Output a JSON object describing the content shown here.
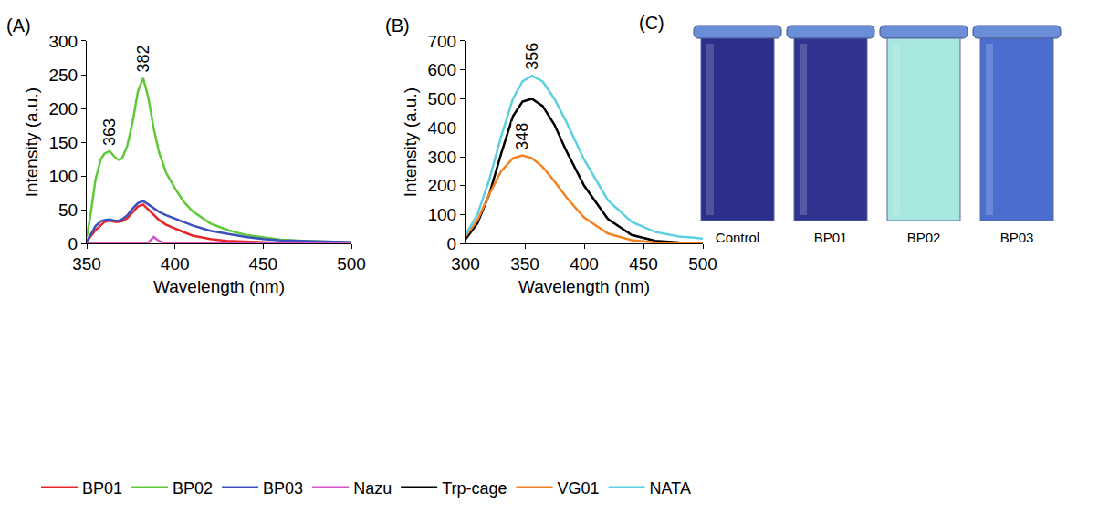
{
  "chart_data": [
    {
      "type": "line",
      "label": "(A)",
      "x_title": "Wavelength (nm)",
      "y_title": "Intensity (a.u.)",
      "xlim": [
        350,
        500
      ],
      "xticks": [
        350,
        400,
        450,
        500
      ],
      "ylim": [
        0,
        300
      ],
      "yticks": [
        0,
        50,
        100,
        150,
        200,
        250,
        300
      ],
      "grid": false,
      "legend": "bottom",
      "x": [
        350,
        352,
        355,
        358,
        360,
        363,
        366,
        368,
        370,
        373,
        376,
        379,
        382,
        385,
        388,
        391,
        395,
        400,
        405,
        410,
        420,
        430,
        440,
        450,
        460,
        475,
        490,
        500
      ],
      "series": [
        {
          "name": "BP01",
          "color": "#e8262a",
          "values": [
            2,
            10,
            20,
            28,
            32,
            34,
            32,
            32,
            33,
            38,
            47,
            55,
            58,
            50,
            42,
            35,
            28,
            22,
            17,
            12,
            7,
            4,
            3,
            2,
            1,
            1,
            0,
            0
          ]
        },
        {
          "name": "BP02",
          "color": "#5fc93a",
          "values": [
            10,
            40,
            95,
            125,
            133,
            137,
            128,
            124,
            126,
            145,
            180,
            225,
            245,
            215,
            170,
            135,
            105,
            82,
            62,
            48,
            30,
            20,
            13,
            9,
            6,
            4,
            3,
            2
          ]
        },
        {
          "name": "BP03",
          "color": "#3b4fbf",
          "values": [
            3,
            12,
            26,
            33,
            35,
            36,
            34,
            34,
            36,
            42,
            52,
            60,
            63,
            58,
            52,
            47,
            42,
            37,
            31,
            27,
            19,
            14,
            10,
            7,
            5,
            4,
            3,
            2
          ]
        },
        {
          "name": "Nazu",
          "color": "#d455c8",
          "values": [
            0,
            0,
            0,
            0,
            0,
            0,
            0,
            0,
            0,
            0,
            0,
            0,
            0,
            2,
            10,
            4,
            0,
            0,
            0,
            0,
            0,
            0,
            0,
            0,
            0,
            0,
            0,
            0
          ]
        }
      ],
      "annotations": [
        {
          "text": "382",
          "x": 382,
          "y": 245
        },
        {
          "text": "363",
          "x": 363,
          "y": 137
        }
      ]
    },
    {
      "type": "line",
      "label": "(B)",
      "x_title": "Wavelength (nm)",
      "y_title": "Intensity (a.u.)",
      "xlim": [
        300,
        500
      ],
      "xticks": [
        300,
        350,
        400,
        450,
        500
      ],
      "ylim": [
        0,
        700
      ],
      "yticks": [
        0,
        100,
        200,
        300,
        400,
        500,
        600,
        700
      ],
      "grid": false,
      "x": [
        300,
        310,
        320,
        330,
        340,
        348,
        356,
        365,
        375,
        385,
        400,
        420,
        440,
        460,
        480,
        500
      ],
      "series": [
        {
          "name": "Trp-cage",
          "color": "#000000",
          "values": [
            15,
            70,
            170,
            310,
            440,
            490,
            500,
            475,
            410,
            320,
            200,
            85,
            30,
            10,
            4,
            2
          ]
        },
        {
          "name": "VG01",
          "color": "#f58220",
          "values": [
            25,
            80,
            170,
            250,
            295,
            305,
            295,
            265,
            215,
            160,
            90,
            35,
            12,
            4,
            1,
            0
          ]
        },
        {
          "name": "NATA",
          "color": "#5ccfe0",
          "values": [
            30,
            100,
            220,
            370,
            500,
            560,
            580,
            560,
            500,
            420,
            290,
            150,
            75,
            40,
            25,
            18
          ]
        }
      ],
      "annotations": [
        {
          "text": "356",
          "x": 356,
          "y": 580
        },
        {
          "text": "348",
          "x": 348,
          "y": 305
        }
      ]
    }
  ],
  "photo_panel": {
    "label": "(C)",
    "tubes": [
      {
        "label": "Control",
        "color": "#2b2e8a"
      },
      {
        "label": "BP01",
        "color": "#30348f"
      },
      {
        "label": "BP02",
        "color": "#a8e6e0"
      },
      {
        "label": "BP03",
        "color": "#4a6ed0"
      }
    ]
  }
}
